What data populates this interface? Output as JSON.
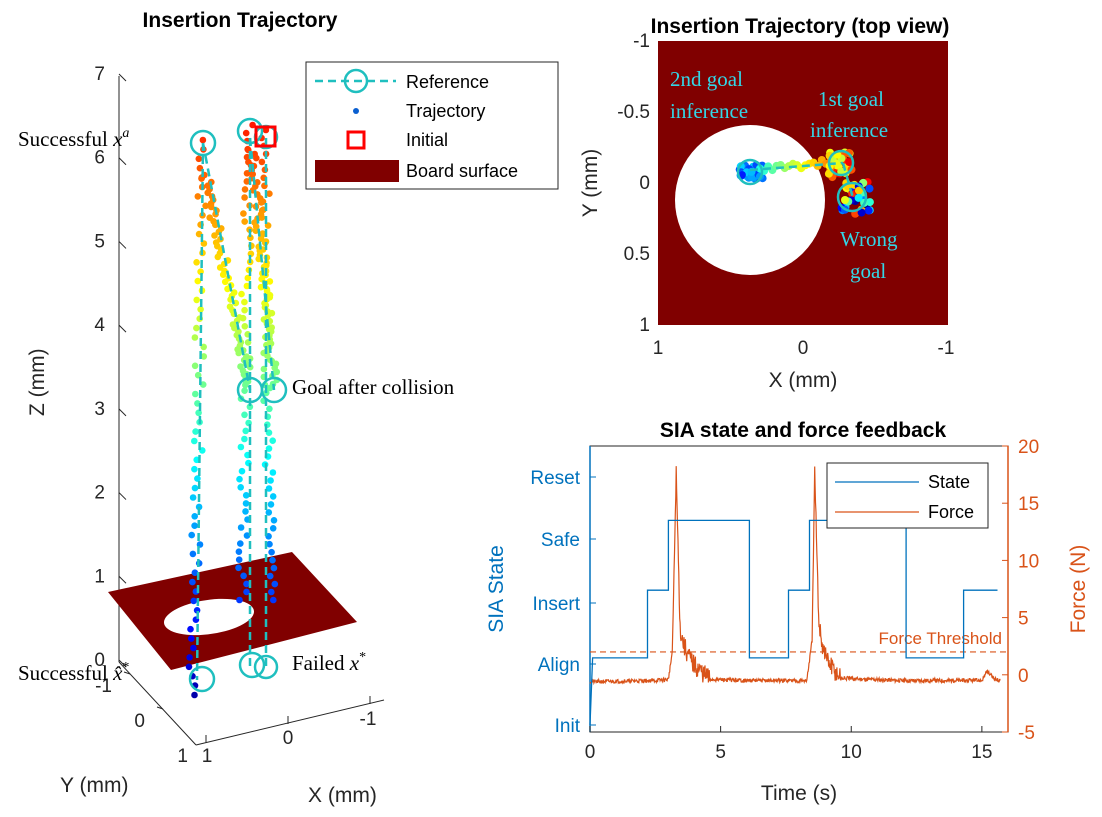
{
  "chart_data": [
    {
      "type": "scatter",
      "title": "Insertion Trajectory",
      "xlabel": "X (mm)",
      "ylabel": "Y (mm)",
      "zlabel": "Z (mm)",
      "xticks": [
        "-1",
        "0",
        "1"
      ],
      "yticks": [
        "-1",
        "0",
        "1"
      ],
      "zticks": [
        "0",
        "1",
        "2",
        "3",
        "4",
        "5",
        "6",
        "7"
      ],
      "zlim": [
        0,
        7
      ],
      "legend": {
        "placement": "top-right",
        "entries": [
          "Reference",
          "Trajectory",
          "Initial",
          "Board surface"
        ]
      },
      "annotations": {
        "successful_xa": "Successful ",
        "successful_xa_math": "x",
        "successful_xa_sup": "a",
        "successful_xhat": "Successful ",
        "successful_xhat_math": "x̂",
        "successful_xhat_sup": "*",
        "goal_after_collision": "Goal after collision",
        "failed_x": "Failed ",
        "failed_x_math": "x",
        "failed_x_sup": "*"
      },
      "colors": {
        "reference": "#1fbfbf",
        "initial": "#ff0000",
        "board": "#800000"
      }
    },
    {
      "type": "scatter",
      "title": "Insertion Trajectory (top view)",
      "xlabel": "X (mm)",
      "ylabel": "Y (mm)",
      "xticks": [
        "1",
        "0",
        "-1"
      ],
      "yticks": [
        "-1",
        "-0.5",
        "0",
        "0.5",
        "1"
      ],
      "xlim": [
        1,
        -1
      ],
      "ylim": [
        -1,
        1
      ],
      "annotations": {
        "second_goal": [
          "2nd goal",
          "inference"
        ],
        "first_goal": [
          "1st goal",
          "inference"
        ],
        "wrong_goal": [
          "Wrong",
          "goal"
        ]
      },
      "colors": {
        "board": "#800000",
        "hole": "#ffffff",
        "annotation": "#33d6e6"
      }
    },
    {
      "type": "line",
      "title": "SIA state and force feedback",
      "xlabel": "Time (s)",
      "ylabel": "SIA State",
      "y2label": "Force (N)",
      "xlim": [
        0,
        16
      ],
      "xticks": [
        "0",
        "5",
        "10",
        "15"
      ],
      "state_labels": [
        "Init",
        "Align",
        "Insert",
        "Safe",
        "Reset"
      ],
      "y2lim": [
        -5,
        20
      ],
      "y2ticks": [
        "-5",
        "0",
        "5",
        "10",
        "15",
        "20"
      ],
      "threshold": {
        "label": "Force Threshold",
        "value": 2
      },
      "legend": {
        "placement": "top-right",
        "entries": [
          "State",
          "Force"
        ]
      },
      "series": [
        {
          "name": "State",
          "color": "#0072BD",
          "steps": [
            [
              0,
              0
            ],
            [
              0.1,
              1.1
            ],
            [
              2.2,
              1.1
            ],
            [
              2.2,
              2.2
            ],
            [
              3.0,
              2.2
            ],
            [
              3.0,
              3.3
            ],
            [
              6.1,
              3.3
            ],
            [
              6.1,
              1.1
            ],
            [
              7.6,
              1.1
            ],
            [
              7.6,
              2.2
            ],
            [
              8.4,
              2.2
            ],
            [
              8.4,
              3.3
            ],
            [
              12.1,
              3.3
            ],
            [
              12.1,
              1.1
            ],
            [
              14.3,
              1.1
            ],
            [
              14.3,
              2.2
            ],
            [
              15.6,
              2.2
            ],
            [
              15.6,
              4.3
            ],
            [
              15.7,
              4.3
            ],
            [
              15.7,
              0
            ]
          ]
        },
        {
          "name": "Force",
          "color": "#D95319",
          "points": [
            [
              0,
              -0.6
            ],
            [
              2.5,
              -0.5
            ],
            [
              3.0,
              -0.4
            ],
            [
              3.15,
              2
            ],
            [
              3.3,
              17.5
            ],
            [
              3.45,
              4
            ],
            [
              3.6,
              2.5
            ],
            [
              3.8,
              1.5
            ],
            [
              4.0,
              0.8
            ],
            [
              4.3,
              0.2
            ],
            [
              4.6,
              -0.4
            ],
            [
              6.0,
              -0.5
            ],
            [
              8.3,
              -0.5
            ],
            [
              8.5,
              3
            ],
            [
              8.6,
              17.5
            ],
            [
              8.75,
              5
            ],
            [
              8.9,
              2.5
            ],
            [
              9.1,
              1.2
            ],
            [
              9.3,
              0.5
            ],
            [
              9.6,
              -0.3
            ],
            [
              12.0,
              -0.5
            ],
            [
              15.0,
              -0.5
            ],
            [
              15.2,
              0.3
            ],
            [
              15.5,
              -0.4
            ],
            [
              15.7,
              -0.5
            ]
          ]
        }
      ]
    }
  ]
}
